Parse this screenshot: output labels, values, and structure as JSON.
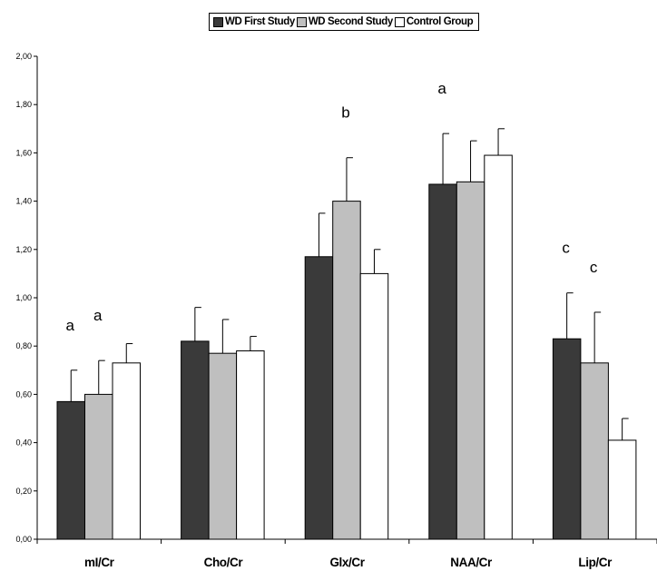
{
  "chart_data": {
    "type": "bar",
    "categories": [
      "mI/Cr",
      "Cho/Cr",
      "Glx/Cr",
      "NAA/Cr",
      "Lip/Cr"
    ],
    "series": [
      {
        "name": "WD First Study",
        "color": "#3a3a3a",
        "values": [
          0.57,
          0.82,
          1.17,
          1.47,
          0.83
        ],
        "errors": [
          0.13,
          0.14,
          0.18,
          0.21,
          0.19
        ]
      },
      {
        "name": "WD Second Study",
        "color": "#bfbfbf",
        "values": [
          0.6,
          0.77,
          1.4,
          1.48,
          0.73
        ],
        "errors": [
          0.14,
          0.14,
          0.18,
          0.17,
          0.21
        ]
      },
      {
        "name": "Control Group",
        "color": "#ffffff",
        "values": [
          0.73,
          0.78,
          1.1,
          1.59,
          0.41
        ],
        "errors": [
          0.08,
          0.06,
          0.1,
          0.11,
          0.09
        ]
      }
    ],
    "ylim": [
      0,
      2.0
    ],
    "yticks": [
      "0,00",
      "0,20",
      "0,40",
      "0,60",
      "0,80",
      "1,00",
      "1,20",
      "1,40",
      "1,60",
      "1,80",
      "2,00"
    ],
    "annotations": [
      {
        "text": "a",
        "category": 0,
        "series": 0
      },
      {
        "text": "a",
        "category": 0,
        "series": 1
      },
      {
        "text": "b",
        "category": 2,
        "series": 1
      },
      {
        "text": "a",
        "category": 3,
        "series": 0
      },
      {
        "text": "c",
        "category": 4,
        "series": 0
      },
      {
        "text": "c",
        "category": 4,
        "series": 1
      }
    ],
    "grid": false,
    "legend_position": "top"
  }
}
